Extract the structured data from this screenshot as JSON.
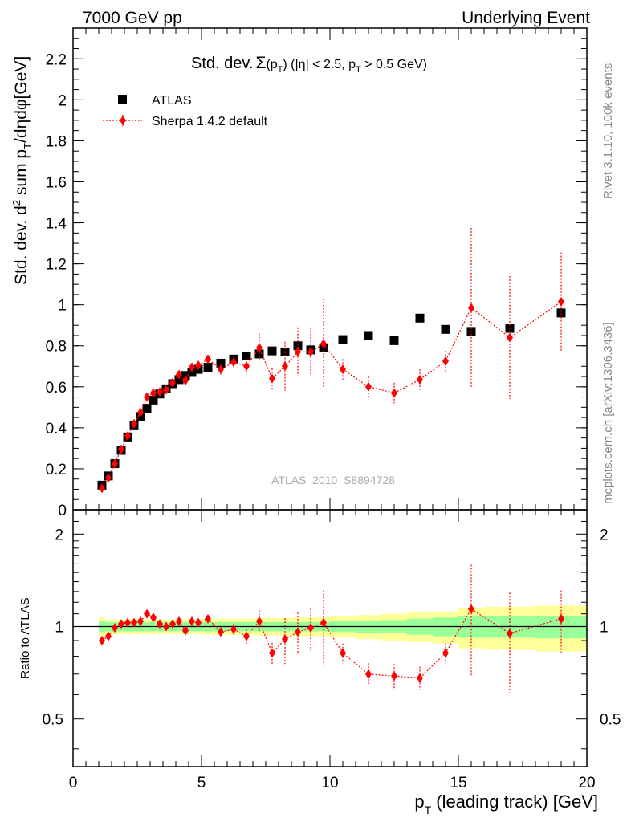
{
  "header": {
    "left": "7000 GeV pp",
    "right": "Underlying Event"
  },
  "side_text": {
    "rivet": "Rivet 3.1.10,  100k events",
    "mcplots": "mcplots.cern.ch [arXiv:1306.3436]"
  },
  "chart_data": [
    {
      "type": "scatter",
      "title": "Std. dev. Σ(p_T) (|η| < 2.5, p_T > 0.5 GeV)",
      "title_main": "Std. dev.",
      "title_sigma": "Σ",
      "title_rest": "(p",
      "title_sub1": "T",
      "title_mid": ") (|η| < 2.5, p",
      "title_sub2": "T",
      "title_end": " > 0.5 GeV)",
      "ylabel": "Std. dev. d² sum p_T/dηdφ[GeV]",
      "ylabel_a": "Std. dev. d",
      "ylabel_sup": "2",
      "ylabel_b": " sum p",
      "ylabel_sub": "T",
      "ylabel_c": "/dηdφ[GeV]",
      "watermark": "ATLAS_2010_S8894728",
      "xlim": [
        0,
        20
      ],
      "ylim": [
        0,
        2.35
      ],
      "y_ticks": [
        0,
        0.2,
        0.4,
        0.6,
        0.8,
        1,
        1.2,
        1.4,
        1.6,
        1.8,
        2,
        2.2
      ],
      "y_tick_labels": [
        "0",
        "0.2",
        "0.4",
        "0.6",
        "0.8",
        "1",
        "1.2",
        "1.4",
        "1.6",
        "1.8",
        "2",
        "2.2"
      ],
      "legend_position": "top-left",
      "series": [
        {
          "name": "ATLAS",
          "color": "#000000",
          "marker": "square",
          "x": [
            1.125,
            1.375,
            1.625,
            1.875,
            2.125,
            2.375,
            2.625,
            2.875,
            3.125,
            3.375,
            3.625,
            3.875,
            4.125,
            4.375,
            4.625,
            4.875,
            5.25,
            5.75,
            6.25,
            6.75,
            7.25,
            7.75,
            8.25,
            8.75,
            9.25,
            9.75,
            10.5,
            11.5,
            12.5,
            13.5,
            14.5,
            15.5,
            17,
            19
          ],
          "y": [
            0.12,
            0.165,
            0.225,
            0.29,
            0.355,
            0.41,
            0.455,
            0.495,
            0.535,
            0.565,
            0.59,
            0.615,
            0.635,
            0.655,
            0.67,
            0.685,
            0.695,
            0.715,
            0.735,
            0.75,
            0.76,
            0.775,
            0.77,
            0.8,
            0.78,
            0.79,
            0.83,
            0.85,
            0.825,
            0.935,
            0.88,
            0.87,
            0.885,
            0.96
          ]
        },
        {
          "name": "Sherpa 1.4.2 default",
          "color": "#ff0000",
          "marker": "diamond",
          "x": [
            1.125,
            1.375,
            1.625,
            1.875,
            2.125,
            2.375,
            2.625,
            2.875,
            3.125,
            3.375,
            3.625,
            3.875,
            4.125,
            4.375,
            4.625,
            4.875,
            5.25,
            5.75,
            6.25,
            6.75,
            7.25,
            7.75,
            8.25,
            8.75,
            9.25,
            9.75,
            10.5,
            11.5,
            12.5,
            13.5,
            14.5,
            15.5,
            17,
            19
          ],
          "y": [
            0.105,
            0.155,
            0.225,
            0.295,
            0.36,
            0.42,
            0.475,
            0.55,
            0.57,
            0.575,
            0.585,
            0.62,
            0.66,
            0.63,
            0.695,
            0.705,
            0.735,
            0.685,
            0.72,
            0.7,
            0.79,
            0.64,
            0.7,
            0.77,
            0.77,
            0.81,
            0.685,
            0.6,
            0.57,
            0.635,
            0.725,
            0.985,
            0.84,
            1.015
          ],
          "yerr": [
            0.005,
            0.005,
            0.005,
            0.006,
            0.007,
            0.008,
            0.009,
            0.01,
            0.011,
            0.012,
            0.013,
            0.014,
            0.015,
            0.016,
            0.017,
            0.018,
            0.02,
            0.025,
            0.03,
            0.04,
            0.07,
            0.05,
            0.12,
            0.12,
            0.12,
            0.22,
            0.05,
            0.05,
            0.05,
            0.05,
            0.05,
            0.39,
            0.3,
            0.24
          ]
        }
      ]
    },
    {
      "type": "scatter",
      "ylabel": "Ratio to ATLAS",
      "xlabel": "p_T (leading track) [GeV]",
      "xlabel_a": "p",
      "xlabel_sub": "T",
      "xlabel_b": " (leading track) [GeV]",
      "xlim": [
        0,
        20
      ],
      "ylim": [
        0.35,
        2.4
      ],
      "x_ticks": [
        0,
        5,
        10,
        15,
        20
      ],
      "x_tick_labels": [
        "0",
        "5",
        "10",
        "15",
        "20"
      ],
      "y_ticks": [
        0.5,
        1,
        2
      ],
      "y_tick_labels": [
        "0.5",
        "1",
        "2"
      ],
      "bands": {
        "x_edges": [
          1,
          1.25,
          1.5,
          1.75,
          2,
          2.25,
          2.5,
          2.75,
          3,
          3.25,
          3.5,
          3.75,
          4,
          4.25,
          4.5,
          4.75,
          5,
          5.5,
          6,
          6.5,
          7,
          7.5,
          8,
          8.5,
          9,
          9.5,
          10,
          11,
          12,
          13,
          14,
          15,
          16,
          18,
          20
        ],
        "inner_err": [
          0.04,
          0.035,
          0.035,
          0.035,
          0.035,
          0.035,
          0.035,
          0.035,
          0.035,
          0.035,
          0.035,
          0.035,
          0.035,
          0.035,
          0.035,
          0.035,
          0.035,
          0.035,
          0.035,
          0.035,
          0.035,
          0.035,
          0.035,
          0.035,
          0.035,
          0.035,
          0.04,
          0.045,
          0.05,
          0.06,
          0.07,
          0.08,
          0.08,
          0.085
        ],
        "outer_err": [
          0.07,
          0.055,
          0.055,
          0.055,
          0.055,
          0.055,
          0.055,
          0.055,
          0.055,
          0.055,
          0.055,
          0.055,
          0.055,
          0.055,
          0.055,
          0.055,
          0.06,
          0.06,
          0.06,
          0.06,
          0.065,
          0.065,
          0.065,
          0.07,
          0.07,
          0.07,
          0.08,
          0.09,
          0.1,
          0.11,
          0.12,
          0.15,
          0.16,
          0.17
        ],
        "inner_color": "#99ff99",
        "outer_color": "#ffff99"
      },
      "series": [
        {
          "name": "Sherpa 1.4.2 default",
          "color": "#ff0000",
          "marker": "diamond",
          "x": [
            1.125,
            1.375,
            1.625,
            1.875,
            2.125,
            2.375,
            2.625,
            2.875,
            3.125,
            3.375,
            3.625,
            3.875,
            4.125,
            4.375,
            4.625,
            4.875,
            5.25,
            5.75,
            6.25,
            6.75,
            7.25,
            7.75,
            8.25,
            8.75,
            9.25,
            9.75,
            10.5,
            11.5,
            12.5,
            13.5,
            14.5,
            15.5,
            17,
            19
          ],
          "y": [
            0.9,
            0.93,
            0.99,
            1.02,
            1.03,
            1.03,
            1.04,
            1.1,
            1.07,
            1.02,
            1.0,
            1.02,
            1.04,
            0.97,
            1.04,
            1.03,
            1.06,
            0.96,
            0.98,
            0.93,
            1.04,
            0.82,
            0.91,
            0.96,
            0.99,
            1.03,
            0.82,
            0.7,
            0.69,
            0.68,
            0.82,
            1.14,
            0.95,
            1.06
          ],
          "yerr": [
            0.01,
            0.01,
            0.01,
            0.01,
            0.01,
            0.01,
            0.01,
            0.015,
            0.015,
            0.015,
            0.015,
            0.02,
            0.02,
            0.02,
            0.025,
            0.025,
            0.03,
            0.035,
            0.04,
            0.05,
            0.09,
            0.065,
            0.155,
            0.15,
            0.155,
            0.28,
            0.06,
            0.06,
            0.065,
            0.06,
            0.06,
            0.45,
            0.34,
            0.25
          ]
        }
      ]
    }
  ]
}
